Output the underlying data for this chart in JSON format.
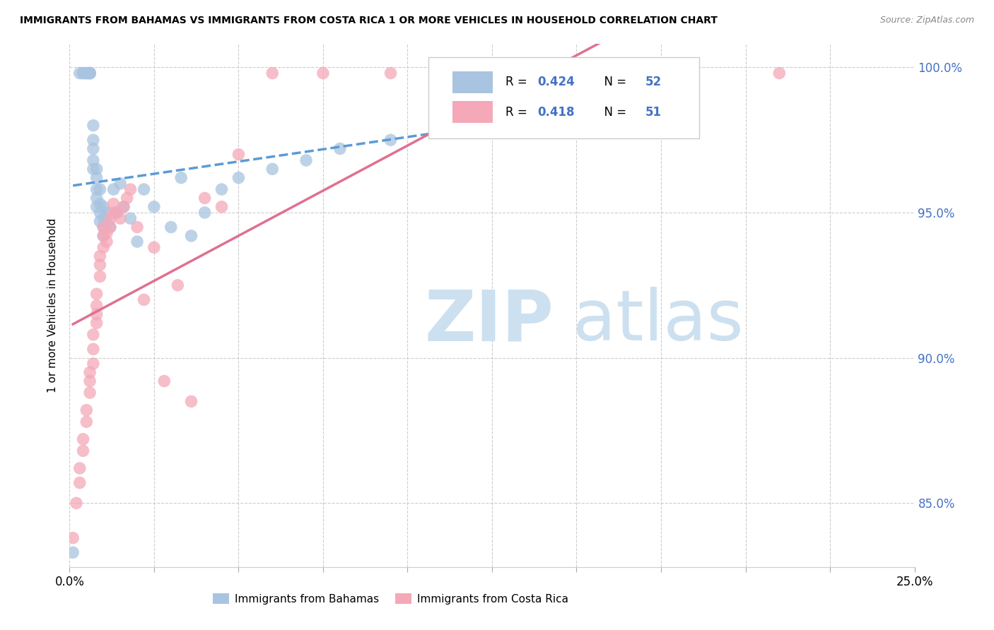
{
  "title": "IMMIGRANTS FROM BAHAMAS VS IMMIGRANTS FROM COSTA RICA 1 OR MORE VEHICLES IN HOUSEHOLD CORRELATION CHART",
  "source": "Source: ZipAtlas.com",
  "ylabel": "1 or more Vehicles in Household",
  "xlim": [
    0.0,
    0.25
  ],
  "ylim": [
    0.828,
    1.008
  ],
  "ytick_positions": [
    0.85,
    0.9,
    0.95,
    1.0
  ],
  "ytick_labels": [
    "85.0%",
    "90.0%",
    "95.0%",
    "100.0%"
  ],
  "color_bahamas": "#a8c4e0",
  "color_costarica": "#f4a8b8",
  "color_blue_text": "#4472c4",
  "color_line_blue": "#5b9bd5",
  "color_line_pink": "#e07090",
  "watermark_color": "#d0e8f8",
  "legend_r1": "R = 0.424",
  "legend_n1": "N = 52",
  "legend_r2": "R = 0.418",
  "legend_n2": "N = 51",
  "bahamas_x": [
    0.001,
    0.003,
    0.004,
    0.004,
    0.005,
    0.005,
    0.006,
    0.006,
    0.006,
    0.006,
    0.007,
    0.007,
    0.007,
    0.007,
    0.007,
    0.008,
    0.008,
    0.008,
    0.008,
    0.008,
    0.009,
    0.009,
    0.009,
    0.009,
    0.01,
    0.01,
    0.01,
    0.01,
    0.011,
    0.011,
    0.012,
    0.013,
    0.014,
    0.015,
    0.016,
    0.018,
    0.02,
    0.022,
    0.025,
    0.03,
    0.033,
    0.036,
    0.04,
    0.045,
    0.05,
    0.06,
    0.07,
    0.08,
    0.095,
    0.11,
    0.13,
    0.15
  ],
  "bahamas_y": [
    0.833,
    0.998,
    0.998,
    0.998,
    0.998,
    0.998,
    0.998,
    0.998,
    0.998,
    0.998,
    0.98,
    0.975,
    0.972,
    0.968,
    0.965,
    0.965,
    0.962,
    0.958,
    0.955,
    0.952,
    0.958,
    0.953,
    0.95,
    0.947,
    0.952,
    0.948,
    0.945,
    0.942,
    0.95,
    0.947,
    0.945,
    0.958,
    0.95,
    0.96,
    0.952,
    0.948,
    0.94,
    0.958,
    0.952,
    0.945,
    0.962,
    0.942,
    0.95,
    0.958,
    0.962,
    0.965,
    0.968,
    0.972,
    0.975,
    0.978,
    0.998,
    0.998
  ],
  "costarica_x": [
    0.001,
    0.002,
    0.003,
    0.003,
    0.004,
    0.004,
    0.005,
    0.005,
    0.006,
    0.006,
    0.006,
    0.007,
    0.007,
    0.007,
    0.008,
    0.008,
    0.008,
    0.008,
    0.009,
    0.009,
    0.009,
    0.01,
    0.01,
    0.01,
    0.011,
    0.011,
    0.012,
    0.012,
    0.013,
    0.013,
    0.014,
    0.015,
    0.016,
    0.017,
    0.018,
    0.02,
    0.022,
    0.025,
    0.028,
    0.032,
    0.036,
    0.04,
    0.045,
    0.05,
    0.06,
    0.075,
    0.095,
    0.12,
    0.15,
    0.18,
    0.21
  ],
  "costarica_y": [
    0.838,
    0.85,
    0.857,
    0.862,
    0.868,
    0.872,
    0.878,
    0.882,
    0.888,
    0.892,
    0.895,
    0.898,
    0.903,
    0.908,
    0.912,
    0.915,
    0.918,
    0.922,
    0.928,
    0.932,
    0.935,
    0.938,
    0.942,
    0.945,
    0.94,
    0.943,
    0.945,
    0.948,
    0.95,
    0.953,
    0.95,
    0.948,
    0.952,
    0.955,
    0.958,
    0.945,
    0.92,
    0.938,
    0.892,
    0.925,
    0.885,
    0.955,
    0.952,
    0.97,
    0.998,
    0.998,
    0.998,
    0.998,
    0.998,
    0.998,
    0.998
  ]
}
